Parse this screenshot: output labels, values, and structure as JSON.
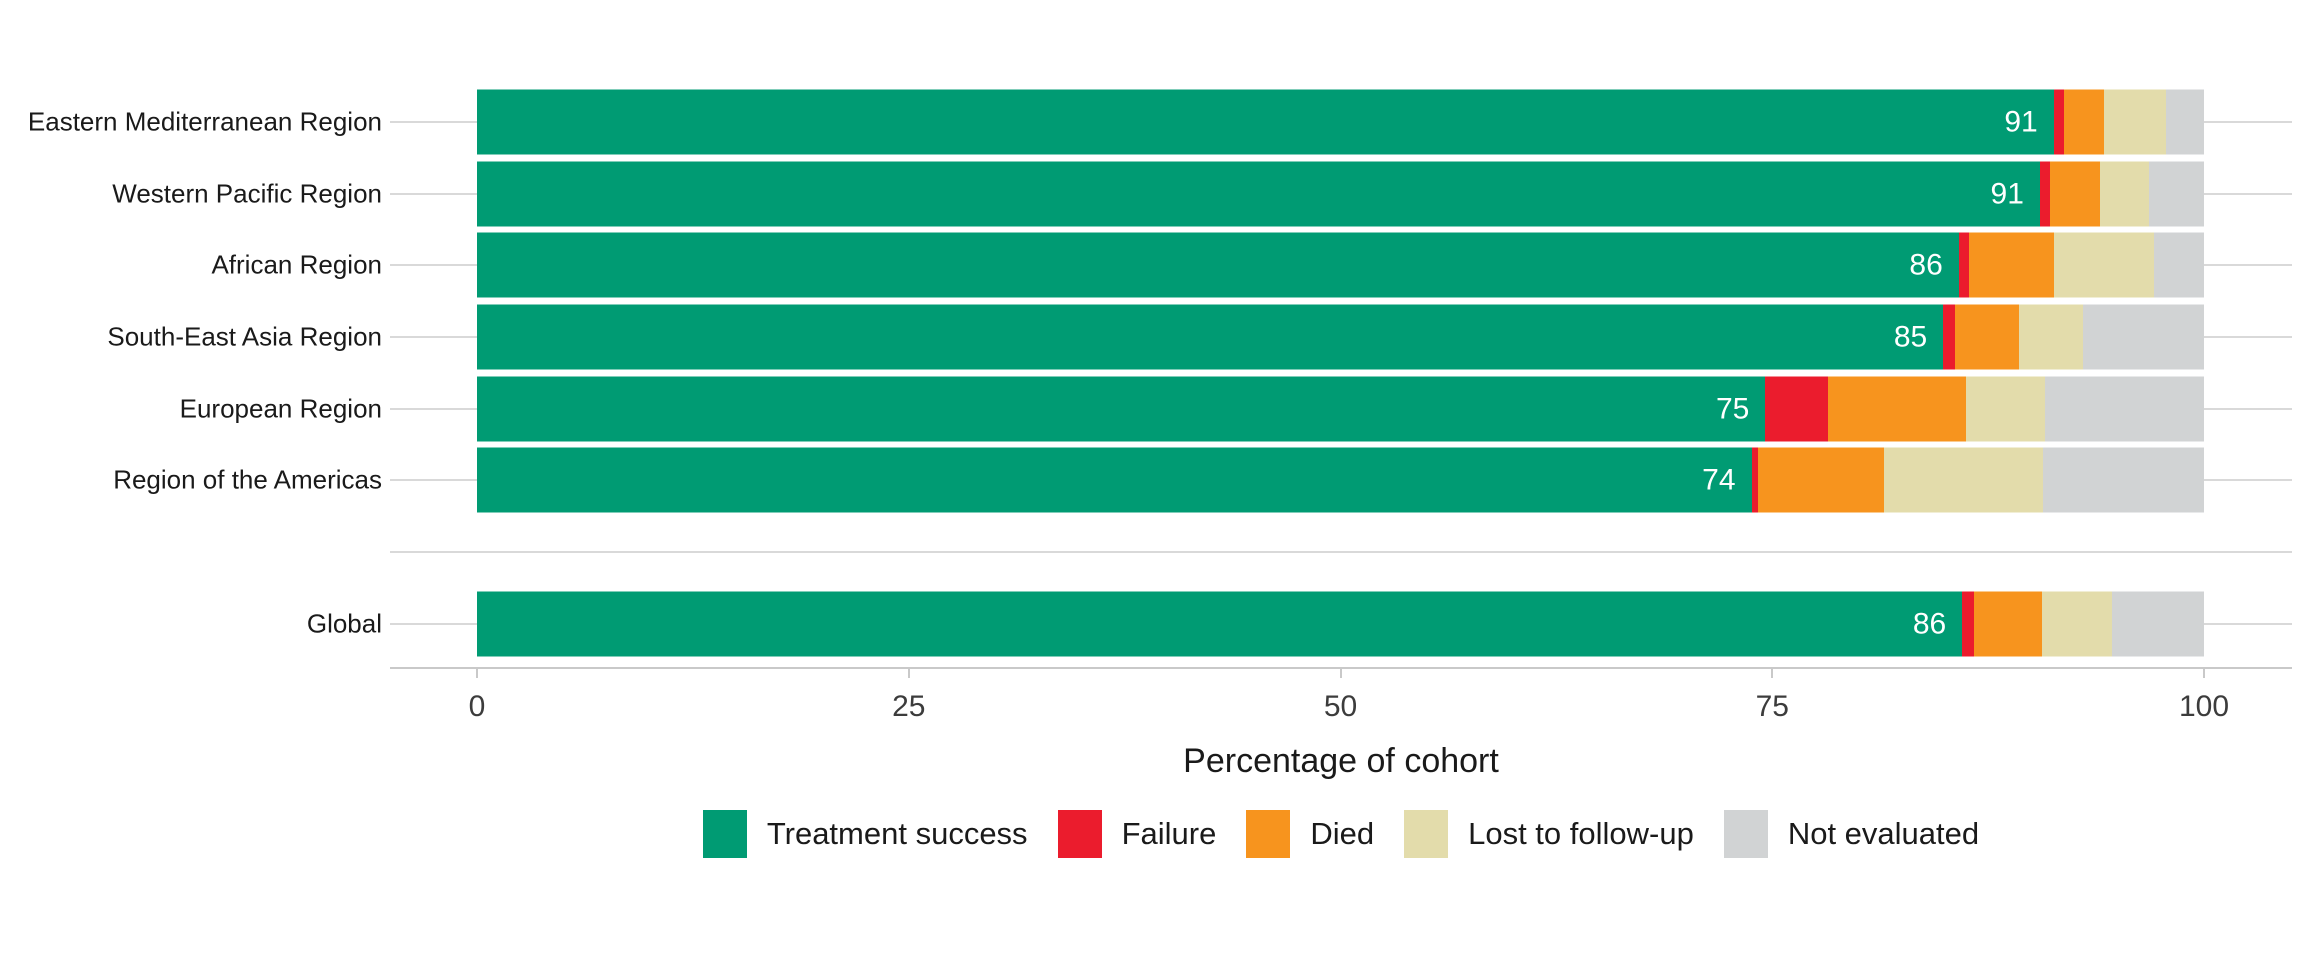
{
  "chart_data": {
    "type": "bar",
    "orientation": "horizontal-stacked",
    "title": "",
    "xlabel": "Percentage of cohort",
    "ylabel": "",
    "xlim": [
      0,
      100
    ],
    "x_ticks": [
      "0",
      "25",
      "50",
      "75",
      "100"
    ],
    "x_tick_values": [
      0,
      25,
      50,
      75,
      100
    ],
    "grid": "horizontal-major",
    "legend_position": "bottom",
    "categories": [
      "Eastern Mediterranean Region",
      "Western Pacific Region",
      "African Region",
      "South-East Asia Region",
      "European Region",
      "Region of the Americas",
      "Global"
    ],
    "spacer_before": 6,
    "series": [
      {
        "name": "Treatment success",
        "key": "success",
        "color": "#009B73",
        "values": [
          91.3,
          90.5,
          85.8,
          84.9,
          74.6,
          73.8,
          86.0
        ]
      },
      {
        "name": "Failure",
        "key": "failure",
        "color": "#EB1C2D",
        "values": [
          0.6,
          0.6,
          0.6,
          0.7,
          3.6,
          0.4,
          0.7
        ]
      },
      {
        "name": "Died",
        "key": "died",
        "color": "#F7941E",
        "values": [
          2.3,
          2.9,
          4.9,
          3.7,
          8.0,
          7.3,
          3.9
        ]
      },
      {
        "name": "Lost to follow-up",
        "key": "lost",
        "color": "#E3DCAB",
        "values": [
          3.6,
          2.8,
          5.8,
          3.7,
          4.6,
          9.2,
          4.1
        ]
      },
      {
        "name": "Not evaluated",
        "key": "noteval",
        "color": "#D1D3D4",
        "values": [
          2.2,
          3.2,
          2.9,
          7.0,
          9.2,
          9.3,
          5.3
        ]
      }
    ],
    "bar_value_labels": [
      "91",
      "91",
      "86",
      "85",
      "75",
      "74",
      "86"
    ]
  },
  "axis": {
    "title": "Percentage of cohort"
  },
  "legend": {
    "items": [
      {
        "label": "Treatment success",
        "color": "#009B73"
      },
      {
        "label": "Failure",
        "color": "#EB1C2D"
      },
      {
        "label": "Died",
        "color": "#F7941E"
      },
      {
        "label": "Lost to follow-up",
        "color": "#E3DCAB"
      },
      {
        "label": "Not evaluated",
        "color": "#D1D3D4"
      }
    ]
  },
  "colors": {
    "gridline": "#D9D9D9",
    "axis_line": "#C9C9C9",
    "tick_mark": "#C9C9C9",
    "tick_label": "#3C3C3C",
    "category_label": "#1A1A1A",
    "axis_title": "#1A1A1A",
    "value_label": "#FFFFFF",
    "background": "#FFFFFF"
  }
}
